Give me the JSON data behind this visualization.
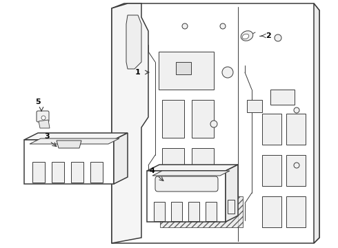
{
  "background_color": "#ffffff",
  "line_color": "#3a3a3a",
  "label_color": "#000000",
  "fig_width": 4.9,
  "fig_height": 3.6,
  "dpi": 100
}
